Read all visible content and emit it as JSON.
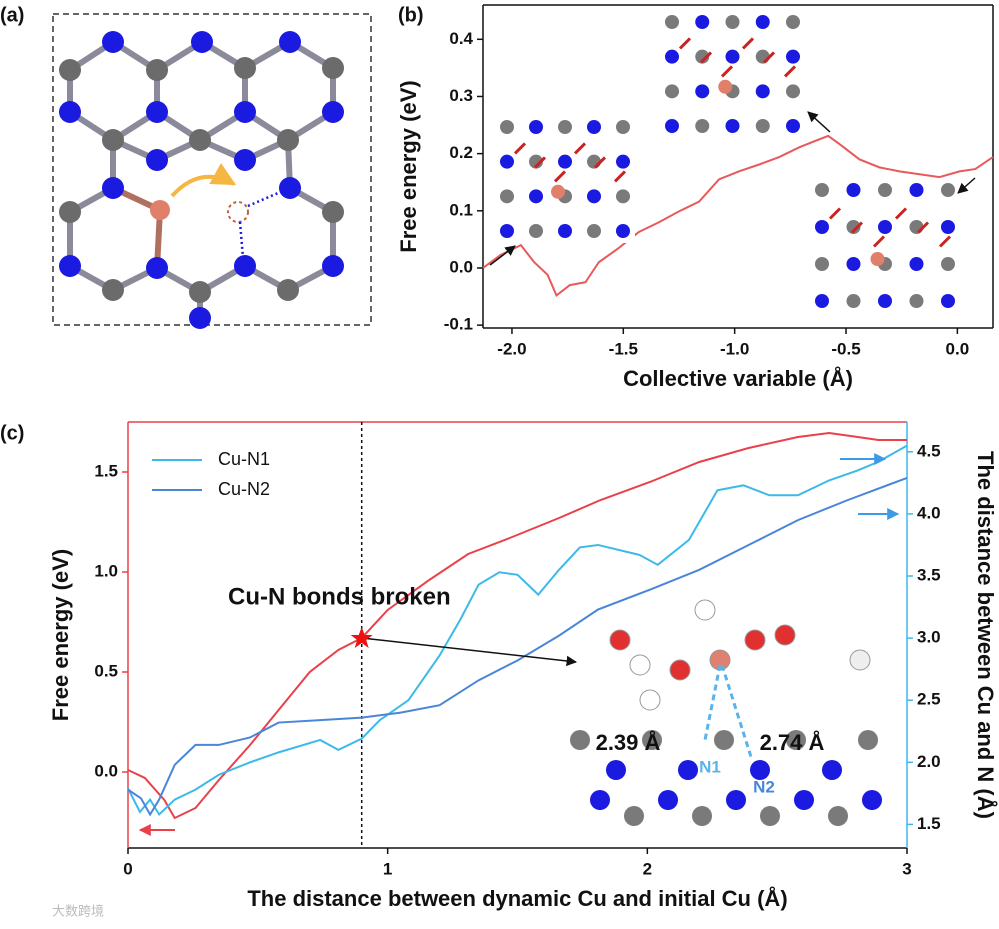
{
  "panel_labels": [
    "(a)",
    "(b)",
    "(c)"
  ],
  "watermark": "大数跨境",
  "chart_data": [
    {
      "type": "line",
      "xlabel": "Collective variable (Å)",
      "ylabel": "Free energy (eV)",
      "xlim": [
        -2.13,
        0.16
      ],
      "ylim": [
        -0.105,
        0.46
      ],
      "xticks": [
        {
          "value": -2,
          "label": "-2.0"
        },
        -1.5,
        {
          "value": -1,
          "label": "-1.0"
        },
        -0.5,
        {
          "value": 0,
          "label": "0.0"
        }
      ],
      "yticks": [
        -0.1,
        {
          "value": 0,
          "label": "0.0"
        },
        0.1,
        0.2,
        0.3,
        0.4
      ],
      "x": [
        -2.13,
        -2.05,
        -1.96,
        -1.9,
        -1.84,
        -1.8,
        -1.74,
        -1.67,
        -1.61,
        -1.52,
        -1.43,
        -1.34,
        -1.25,
        -1.16,
        -1.07,
        -0.98,
        -0.89,
        -0.8,
        -0.71,
        -0.64,
        -0.58,
        -0.53,
        -0.44,
        -0.35,
        -0.26,
        -0.17,
        -0.08,
        0.01,
        0.08,
        0.16
      ],
      "series": [
        {
          "color": "#e8595a",
          "values": [
            0.0,
            0.023,
            0.04,
            0.01,
            -0.012,
            -0.048,
            -0.03,
            -0.025,
            0.01,
            0.035,
            0.063,
            0.08,
            0.099,
            0.116,
            0.155,
            0.169,
            0.181,
            0.194,
            0.211,
            0.222,
            0.231,
            0.217,
            0.19,
            0.176,
            0.169,
            0.164,
            0.159,
            0.169,
            0.173,
            0.194
          ]
        }
      ]
    },
    {
      "type": "line",
      "xlabel": "The distance between dynamic Cu and initial Cu (Å)",
      "ylabel": "Free energy (eV)",
      "y2label": "The distance between Cu and N (Å)",
      "xlim": [
        0,
        3
      ],
      "ylim": [
        -0.38,
        1.75
      ],
      "y2lim": [
        1.31,
        4.74
      ],
      "xticks": [
        0,
        1,
        2,
        3
      ],
      "yticks": [
        {
          "value": 0,
          "label": "0.0"
        },
        0.5,
        {
          "value": 1,
          "label": "1.0"
        },
        1.5
      ],
      "y2ticks": [
        1.5,
        {
          "value": 2,
          "label": "2.0"
        },
        2.5,
        {
          "value": 3,
          "label": "3.0"
        },
        3.5,
        {
          "value": 4,
          "label": "4.0"
        },
        4.5
      ],
      "y_axis_color": "#e8414a",
      "y2_axis_color": "#3cb9ea",
      "legend": "upper left",
      "marker": {
        "x": 0.9,
        "y": 0.67,
        "color": "#ee1111"
      },
      "annotations": [
        "Cu-N bonds broken",
        "2.39 Å",
        "2.74 Å",
        "N1",
        "N2"
      ],
      "series": [
        {
          "color": "#e8414a",
          "x": [
            0,
            0.065,
            0.14,
            0.18,
            0.26,
            0.35,
            0.47,
            0.58,
            0.7,
            0.81,
            0.9,
            1.0,
            1.16,
            1.31,
            1.47,
            1.66,
            1.82,
            2.01,
            2.2,
            2.39,
            2.58,
            2.7,
            2.81,
            2.89,
            3.0
          ],
          "values": [
            0.01,
            -0.03,
            -0.14,
            -0.23,
            -0.18,
            -0.04,
            0.135,
            0.31,
            0.5,
            0.61,
            0.67,
            0.81,
            0.96,
            1.09,
            1.17,
            1.27,
            1.36,
            1.45,
            1.55,
            1.62,
            1.675,
            1.695,
            1.675,
            1.66,
            1.66
          ]
        },
        {
          "name": "Cu-N1",
          "color": "#3cb9ea",
          "axis": "y2",
          "x": [
            0,
            0.046,
            0.085,
            0.12,
            0.18,
            0.26,
            0.35,
            0.47,
            0.58,
            0.74,
            0.81,
            0.9,
            0.97,
            1.08,
            1.2,
            1.28,
            1.35,
            1.43,
            1.5,
            1.58,
            1.66,
            1.74,
            1.81,
            1.97,
            2.04,
            2.16,
            2.27,
            2.37,
            2.47,
            2.58,
            2.7,
            2.81,
            2.89,
            3.0
          ],
          "values": [
            1.79,
            1.6,
            1.7,
            1.58,
            1.7,
            1.78,
            1.9,
            2.0,
            2.08,
            2.18,
            2.1,
            2.19,
            2.34,
            2.5,
            2.86,
            3.15,
            3.43,
            3.53,
            3.51,
            3.35,
            3.55,
            3.73,
            3.75,
            3.67,
            3.59,
            3.79,
            4.19,
            4.23,
            4.15,
            4.15,
            4.27,
            4.35,
            4.42,
            4.55
          ]
        },
        {
          "name": "Cu-N2",
          "color": "#4a86d8",
          "axis": "y2",
          "x": [
            0,
            0.05,
            0.085,
            0.12,
            0.18,
            0.26,
            0.35,
            0.47,
            0.58,
            0.74,
            0.9,
            1.05,
            1.2,
            1.35,
            1.5,
            1.66,
            1.81,
            2.01,
            2.2,
            2.39,
            2.58,
            2.77,
            3.0
          ],
          "values": [
            1.78,
            1.71,
            1.58,
            1.7,
            1.98,
            2.14,
            2.14,
            2.2,
            2.32,
            2.34,
            2.36,
            2.4,
            2.46,
            2.66,
            2.82,
            3.02,
            3.23,
            3.39,
            3.55,
            3.75,
            3.95,
            4.11,
            4.29
          ]
        }
      ]
    }
  ]
}
